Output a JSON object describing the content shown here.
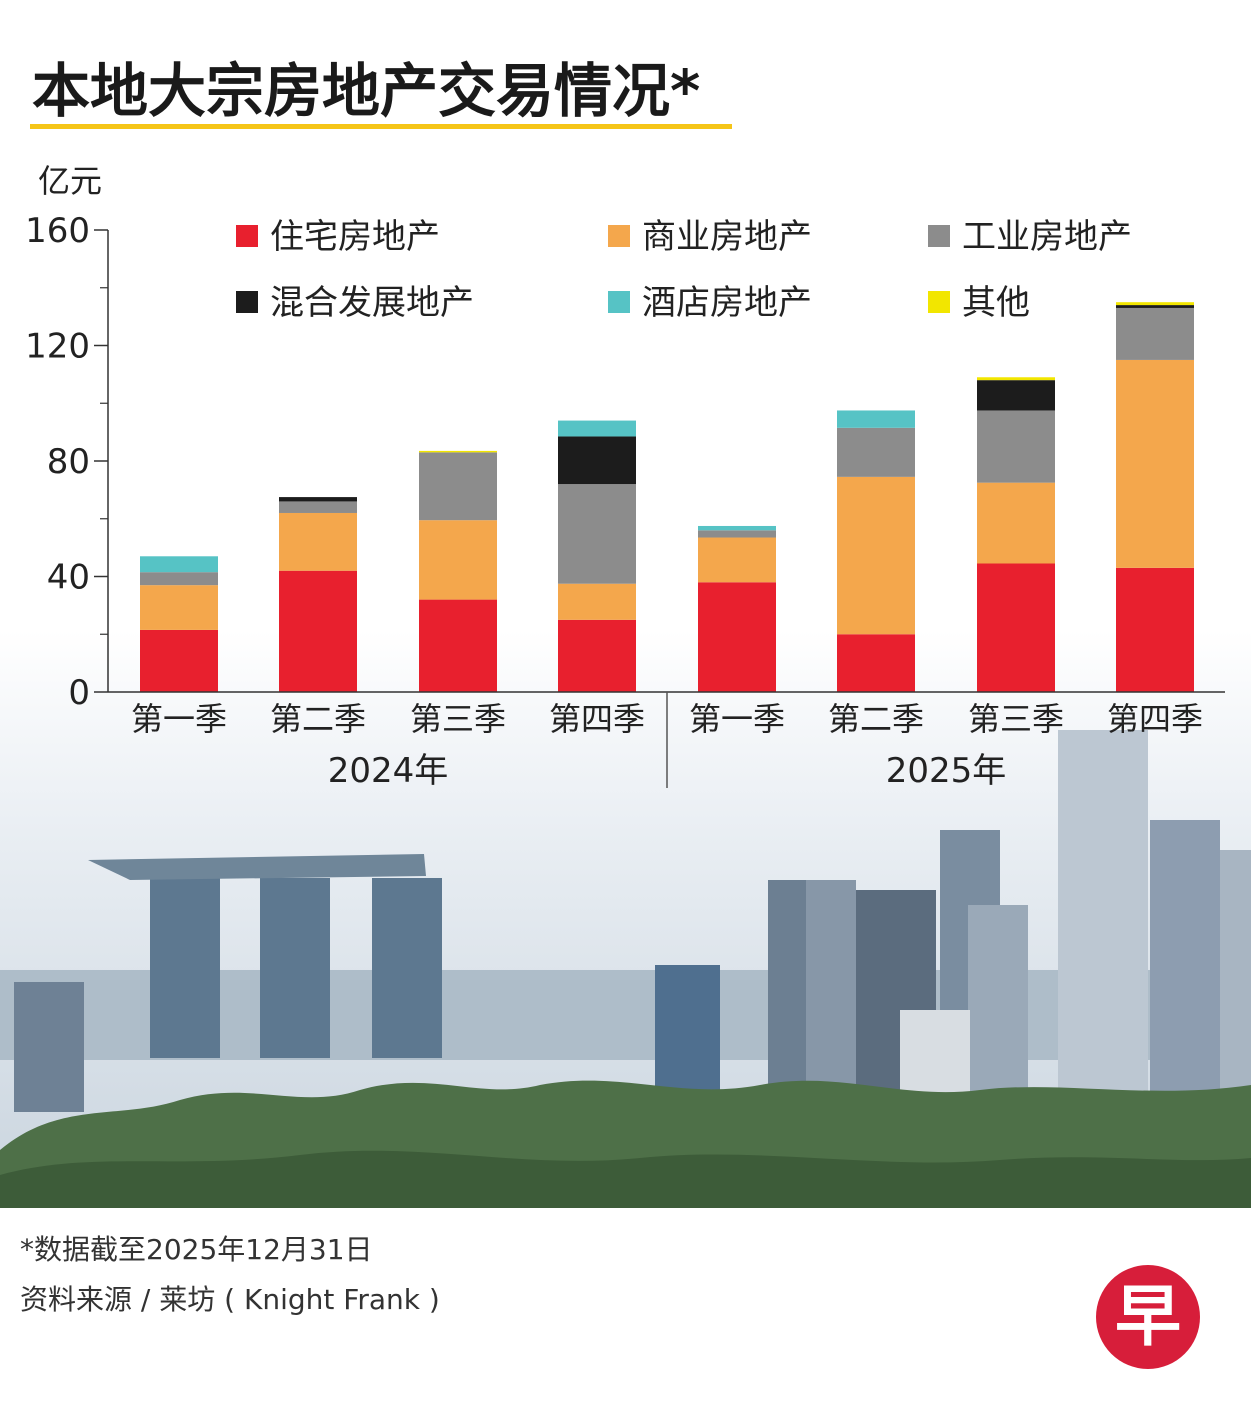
{
  "header": {
    "title": "本地大宗房地产交易情况*",
    "unit": "亿元"
  },
  "colors": {
    "accent_underline": "#f5c518",
    "residential": "#e8202e",
    "commercial": "#f4a74c",
    "industrial": "#8c8c8c",
    "mixed": "#1c1c1c",
    "hotel": "#56c3c5",
    "other": "#f2e600",
    "logo": "#d71e3a"
  },
  "chart_data": {
    "type": "bar",
    "stacked": true,
    "title": "本地大宗房地产交易情况*",
    "ylabel": "亿元",
    "ylim": [
      0,
      160
    ],
    "yticks": [
      0,
      40,
      80,
      120,
      160
    ],
    "categories": [
      "第一季",
      "第二季",
      "第三季",
      "第四季",
      "第一季",
      "第二季",
      "第三季",
      "第四季"
    ],
    "groups": [
      {
        "label": "2024年",
        "start": 0,
        "end": 3
      },
      {
        "label": "2025年",
        "start": 4,
        "end": 7
      }
    ],
    "legend_position": "top",
    "series": [
      {
        "name": "住宅房地产",
        "color_key": "residential",
        "values": [
          21.5,
          42,
          32,
          25,
          38,
          20,
          44.5,
          43
        ]
      },
      {
        "name": "商业房地产",
        "color_key": "commercial",
        "values": [
          15.5,
          20,
          27.5,
          12.5,
          15.5,
          54.5,
          28,
          72
        ]
      },
      {
        "name": "工业房地产",
        "color_key": "industrial",
        "values": [
          4.5,
          4,
          23.5,
          34.5,
          2.5,
          17,
          25,
          18
        ]
      },
      {
        "name": "混合发展地产",
        "color_key": "mixed",
        "values": [
          0,
          1.5,
          0,
          16.5,
          0,
          0,
          10.5,
          1
        ]
      },
      {
        "name": "酒店房地产",
        "color_key": "hotel",
        "values": [
          5.5,
          0,
          0,
          5.5,
          1.5,
          6,
          0,
          0
        ]
      },
      {
        "name": "其他",
        "color_key": "other",
        "values": [
          0,
          0,
          0.5,
          0,
          0,
          0,
          1,
          1
        ]
      }
    ]
  },
  "footer": {
    "note": "*数据截至2025年12月31日",
    "source": "资料来源 / 莱坊 ( Knight Frank )",
    "logo_char": "早"
  }
}
